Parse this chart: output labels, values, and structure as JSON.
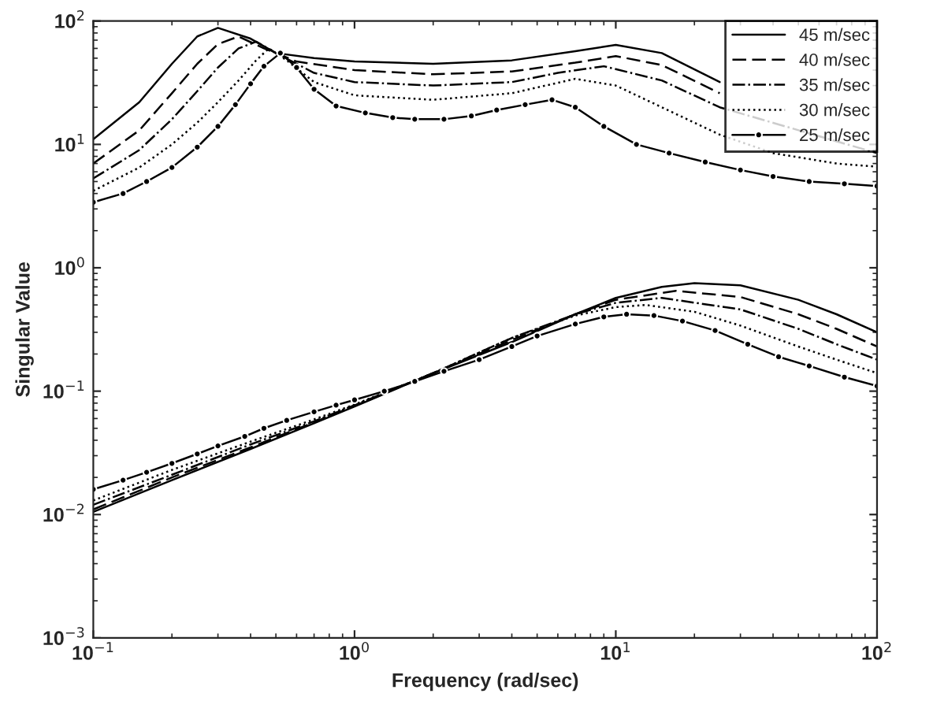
{
  "chart_data": {
    "type": "line",
    "xlabel": "Frequency (rad/sec)",
    "ylabel": "Singular Value",
    "log": "xy",
    "grid": false,
    "legend": "top right",
    "xlim": [
      0.1,
      100
    ],
    "ylim": [
      0.001,
      100
    ],
    "xticks": [
      {
        "value": 0.1,
        "label": "10$^{−1}$"
      },
      {
        "value": 1,
        "label": "10$^{0}$"
      },
      {
        "value": 10,
        "label": "10$^{1}$"
      },
      {
        "value": 100,
        "label": "10$^{2}$"
      }
    ],
    "yticks": [
      {
        "value": 0.001,
        "label": "10$^{−3}$"
      },
      {
        "value": 0.01,
        "label": "10$^{−2}$"
      },
      {
        "value": 0.1,
        "label": "10$^{−1}$"
      },
      {
        "value": 1,
        "label": "10$^{0}$"
      },
      {
        "value": 10,
        "label": "10$^{1}$"
      },
      {
        "value": 100,
        "label": "10$^{2}$"
      }
    ],
    "series": [
      {
        "name": "45 m/sec",
        "color": "#000000",
        "line_style": "solid",
        "marker": "none",
        "x": [
          0.1,
          0.15,
          0.2,
          0.25,
          0.3,
          0.4,
          0.5,
          0.7,
          1,
          2,
          4,
          7,
          10,
          15,
          25
        ],
        "values": [
          11,
          22,
          45,
          75,
          88,
          72,
          55,
          50,
          47,
          45,
          48,
          57,
          64,
          55,
          32
        ]
      },
      {
        "name": "40 m/sec",
        "color": "#000000",
        "line_style": "dashed",
        "marker": "none",
        "x": [
          0.1,
          0.15,
          0.2,
          0.25,
          0.3,
          0.36,
          0.45,
          0.6,
          1,
          2,
          4,
          7,
          10,
          15,
          25
        ],
        "values": [
          7,
          13,
          26,
          45,
          65,
          75,
          60,
          47,
          40,
          37,
          39,
          46,
          52,
          44,
          26
        ]
      },
      {
        "name": "35 m/sec",
        "color": "#000000",
        "line_style": "dashdot",
        "marker": "none",
        "x": [
          0.1,
          0.15,
          0.2,
          0.25,
          0.3,
          0.36,
          0.42,
          0.5,
          0.7,
          1,
          2,
          4,
          6,
          9,
          15,
          25,
          40,
          70,
          100
        ],
        "values": [
          5.3,
          9,
          16,
          27,
          42,
          60,
          68,
          55,
          38,
          32,
          30,
          32,
          38,
          43,
          33,
          20,
          null,
          null,
          8.5
        ]
      },
      {
        "name": "30 m/sec",
        "color": "#000000",
        "line_style": "dotted",
        "marker": "none",
        "x": [
          0.1,
          0.15,
          0.2,
          0.25,
          0.3,
          0.36,
          0.42,
          0.47,
          0.55,
          0.7,
          1,
          2,
          4,
          7,
          10,
          15,
          25,
          40,
          70,
          100
        ],
        "values": [
          4.2,
          6.5,
          10,
          15,
          22,
          33,
          48,
          60,
          48,
          32,
          25,
          23,
          26,
          34,
          30,
          20,
          12,
          8.5,
          7,
          6.6
        ]
      },
      {
        "name": "25 m/sec",
        "color": "#000000",
        "line_style": "solid",
        "marker": "circle",
        "x": [
          0.1,
          0.13,
          0.16,
          0.2,
          0.25,
          0.3,
          0.35,
          0.4,
          0.45,
          0.52,
          0.6,
          0.7,
          0.85,
          1.1,
          1.4,
          1.7,
          2.2,
          2.8,
          3.5,
          4.5,
          5.7,
          7,
          9,
          12,
          16,
          22,
          30,
          40,
          55,
          75,
          100
        ],
        "values": [
          3.4,
          4,
          5,
          6.5,
          9.5,
          14,
          21,
          31,
          43,
          55,
          42,
          28,
          20.5,
          18,
          16.5,
          16,
          16,
          17,
          19,
          21,
          23,
          20,
          14,
          10,
          8.5,
          7.2,
          6.2,
          5.5,
          5,
          4.8,
          4.6
        ]
      },
      {
        "color": "#000000",
        "line_style": "solid",
        "marker": "none",
        "x": [
          0.1,
          0.2,
          0.4,
          0.7,
          1,
          2,
          4,
          7,
          10,
          15,
          20,
          30,
          50,
          70,
          100
        ],
        "values": [
          0.0105,
          0.019,
          0.034,
          0.055,
          0.075,
          0.14,
          0.25,
          0.42,
          0.57,
          0.7,
          0.75,
          0.72,
          0.55,
          0.42,
          0.3
        ]
      },
      {
        "color": "#000000",
        "line_style": "dashed",
        "marker": "none",
        "x": [
          0.1,
          0.2,
          0.4,
          0.7,
          1,
          2,
          4,
          7,
          10,
          17,
          30,
          50,
          70,
          100
        ],
        "values": [
          0.011,
          0.02,
          0.035,
          0.056,
          0.076,
          0.14,
          0.26,
          0.42,
          0.55,
          0.65,
          0.58,
          0.42,
          0.32,
          0.23
        ]
      },
      {
        "color": "#000000",
        "line_style": "dashdot",
        "marker": "none",
        "x": [
          0.1,
          0.2,
          0.4,
          0.7,
          1,
          2,
          4,
          7,
          10,
          15,
          30,
          50,
          70,
          100
        ],
        "values": [
          0.012,
          0.021,
          0.037,
          0.057,
          0.077,
          0.14,
          0.27,
          0.42,
          0.52,
          0.57,
          0.46,
          0.32,
          0.24,
          0.18
        ]
      },
      {
        "color": "#000000",
        "line_style": "dotted",
        "marker": "none",
        "x": [
          0.1,
          0.2,
          0.4,
          0.7,
          1,
          2,
          4,
          7,
          10,
          13,
          20,
          30,
          50,
          70,
          100
        ],
        "values": [
          0.013,
          0.023,
          0.039,
          0.059,
          0.078,
          0.14,
          0.27,
          0.41,
          0.48,
          0.5,
          0.44,
          0.34,
          0.23,
          0.18,
          0.14
        ]
      },
      {
        "color": "#000000",
        "line_style": "solid",
        "marker": "circle",
        "x": [
          0.1,
          0.13,
          0.16,
          0.2,
          0.25,
          0.3,
          0.38,
          0.45,
          0.55,
          0.7,
          0.85,
          1,
          1.3,
          1.7,
          2.2,
          3,
          4,
          5,
          7,
          9,
          11,
          14,
          18,
          24,
          32,
          42,
          55,
          75,
          100
        ],
        "values": [
          0.016,
          0.019,
          0.022,
          0.026,
          0.031,
          0.036,
          0.043,
          0.05,
          0.058,
          0.068,
          0.077,
          0.085,
          0.1,
          0.12,
          0.145,
          0.18,
          0.23,
          0.28,
          0.35,
          0.4,
          0.42,
          0.41,
          0.37,
          0.31,
          0.24,
          0.19,
          0.16,
          0.13,
          0.11
        ]
      }
    ]
  }
}
